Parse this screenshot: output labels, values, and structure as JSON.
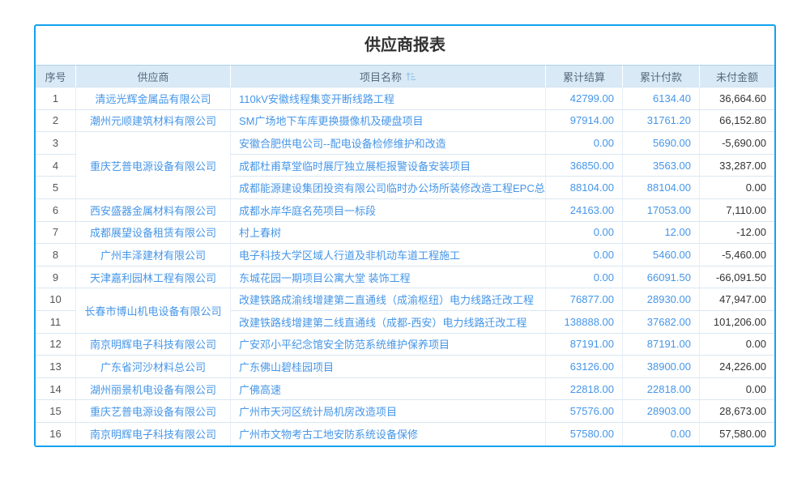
{
  "report": {
    "title": "供应商报表",
    "colors": {
      "card_border": "#12a2f0",
      "header_bg": "#d9eaf6",
      "header_text": "#58697c",
      "link_blue": "#4596e8",
      "dark_text": "#333333",
      "sort_icon": "#9cc7ea"
    },
    "table": {
      "columns": [
        "序号",
        "供应商",
        "项目名称",
        "累计结算",
        "累计付款",
        "未付金额"
      ],
      "project_header_icon": "sort-amount-icon",
      "rows": [
        {
          "no": "1",
          "supplier": {
            "text": "清远光辉金属品有限公司",
            "rowspan": 1
          },
          "project": "110kV安徽线程集变开断线路工程",
          "settled": "42799.00",
          "paid": "6134.40",
          "unpaid": "36,664.60"
        },
        {
          "no": "2",
          "supplier": {
            "text": "潮州元顺建筑材料有限公司",
            "rowspan": 1
          },
          "project": "SM广场地下车库更换摄像机及硬盘项目",
          "settled": "97914.00",
          "paid": "31761.20",
          "unpaid": "66,152.80"
        },
        {
          "no": "3",
          "supplier": {
            "text": "重庆艺普电源设备有限公司",
            "rowspan": 3
          },
          "project": "安徽合肥供电公司--配电设备检修维护和改造",
          "settled": "0.00",
          "paid": "5690.00",
          "unpaid": "-5,690.00"
        },
        {
          "no": "4",
          "supplier": null,
          "project": "成都杜甫草堂临时展厅独立展柜报警设备安装项目",
          "settled": "36850.00",
          "paid": "3563.00",
          "unpaid": "33,287.00"
        },
        {
          "no": "5",
          "supplier": null,
          "project": "成都能源建设集团投资有限公司临时办公场所装修改造工程EPC总承包",
          "settled": "88104.00",
          "paid": "88104.00",
          "unpaid": "0.00"
        },
        {
          "no": "6",
          "supplier": {
            "text": "西安盛器金属材料有限公司",
            "rowspan": 1
          },
          "project": "成都水岸华庭名苑项目一标段",
          "settled": "24163.00",
          "paid": "17053.00",
          "unpaid": "7,110.00"
        },
        {
          "no": "7",
          "supplier": {
            "text": "成都展望设备租赁有限公司",
            "rowspan": 1
          },
          "project": "村上春树",
          "settled": "0.00",
          "paid": "12.00",
          "unpaid": "-12.00"
        },
        {
          "no": "8",
          "supplier": {
            "text": "广州丰泽建材有限公司",
            "rowspan": 1
          },
          "project": "电子科技大学区域人行道及非机动车道工程施工",
          "settled": "0.00",
          "paid": "5460.00",
          "unpaid": "-5,460.00"
        },
        {
          "no": "9",
          "supplier": {
            "text": "天津嘉利园林工程有限公司",
            "rowspan": 1
          },
          "project": "东城花园一期项目公寓大堂 装饰工程",
          "settled": "0.00",
          "paid": "66091.50",
          "unpaid": "-66,091.50"
        },
        {
          "no": "10",
          "supplier": {
            "text": "长春市博山机电设备有限公司",
            "rowspan": 2
          },
          "project": "改建铁路成渝线增建第二直通线（成渝枢纽）电力线路迁改工程",
          "settled": "76877.00",
          "paid": "28930.00",
          "unpaid": "47,947.00"
        },
        {
          "no": "11",
          "supplier": null,
          "project": "改建铁路线增建第二线直通线（成都-西安）电力线路迁改工程",
          "settled": "138888.00",
          "paid": "37682.00",
          "unpaid": "101,206.00"
        },
        {
          "no": "12",
          "supplier": {
            "text": "南京明辉电子科技有限公司",
            "rowspan": 1
          },
          "project": "广安邓小平纪念馆安全防范系统维护保养项目",
          "settled": "87191.00",
          "paid": "87191.00",
          "unpaid": "0.00"
        },
        {
          "no": "13",
          "supplier": {
            "text": "广东省河沙材料总公司",
            "rowspan": 1
          },
          "project": "广东佛山碧桂园项目",
          "settled": "63126.00",
          "paid": "38900.00",
          "unpaid": "24,226.00"
        },
        {
          "no": "14",
          "supplier": {
            "text": "湖州丽景机电设备有限公司",
            "rowspan": 1
          },
          "project": "广佛高速",
          "settled": "22818.00",
          "paid": "22818.00",
          "unpaid": "0.00"
        },
        {
          "no": "15",
          "supplier": {
            "text": "重庆艺普电源设备有限公司",
            "rowspan": 1
          },
          "project": "广州市天河区统计局机房改造项目",
          "settled": "57576.00",
          "paid": "28903.00",
          "unpaid": "28,673.00"
        },
        {
          "no": "16",
          "supplier": {
            "text": "南京明辉电子科技有限公司",
            "rowspan": 1
          },
          "project": "广州市文物考古工地安防系统设备保修",
          "settled": "57580.00",
          "paid": "0.00",
          "unpaid": "57,580.00"
        }
      ]
    }
  }
}
